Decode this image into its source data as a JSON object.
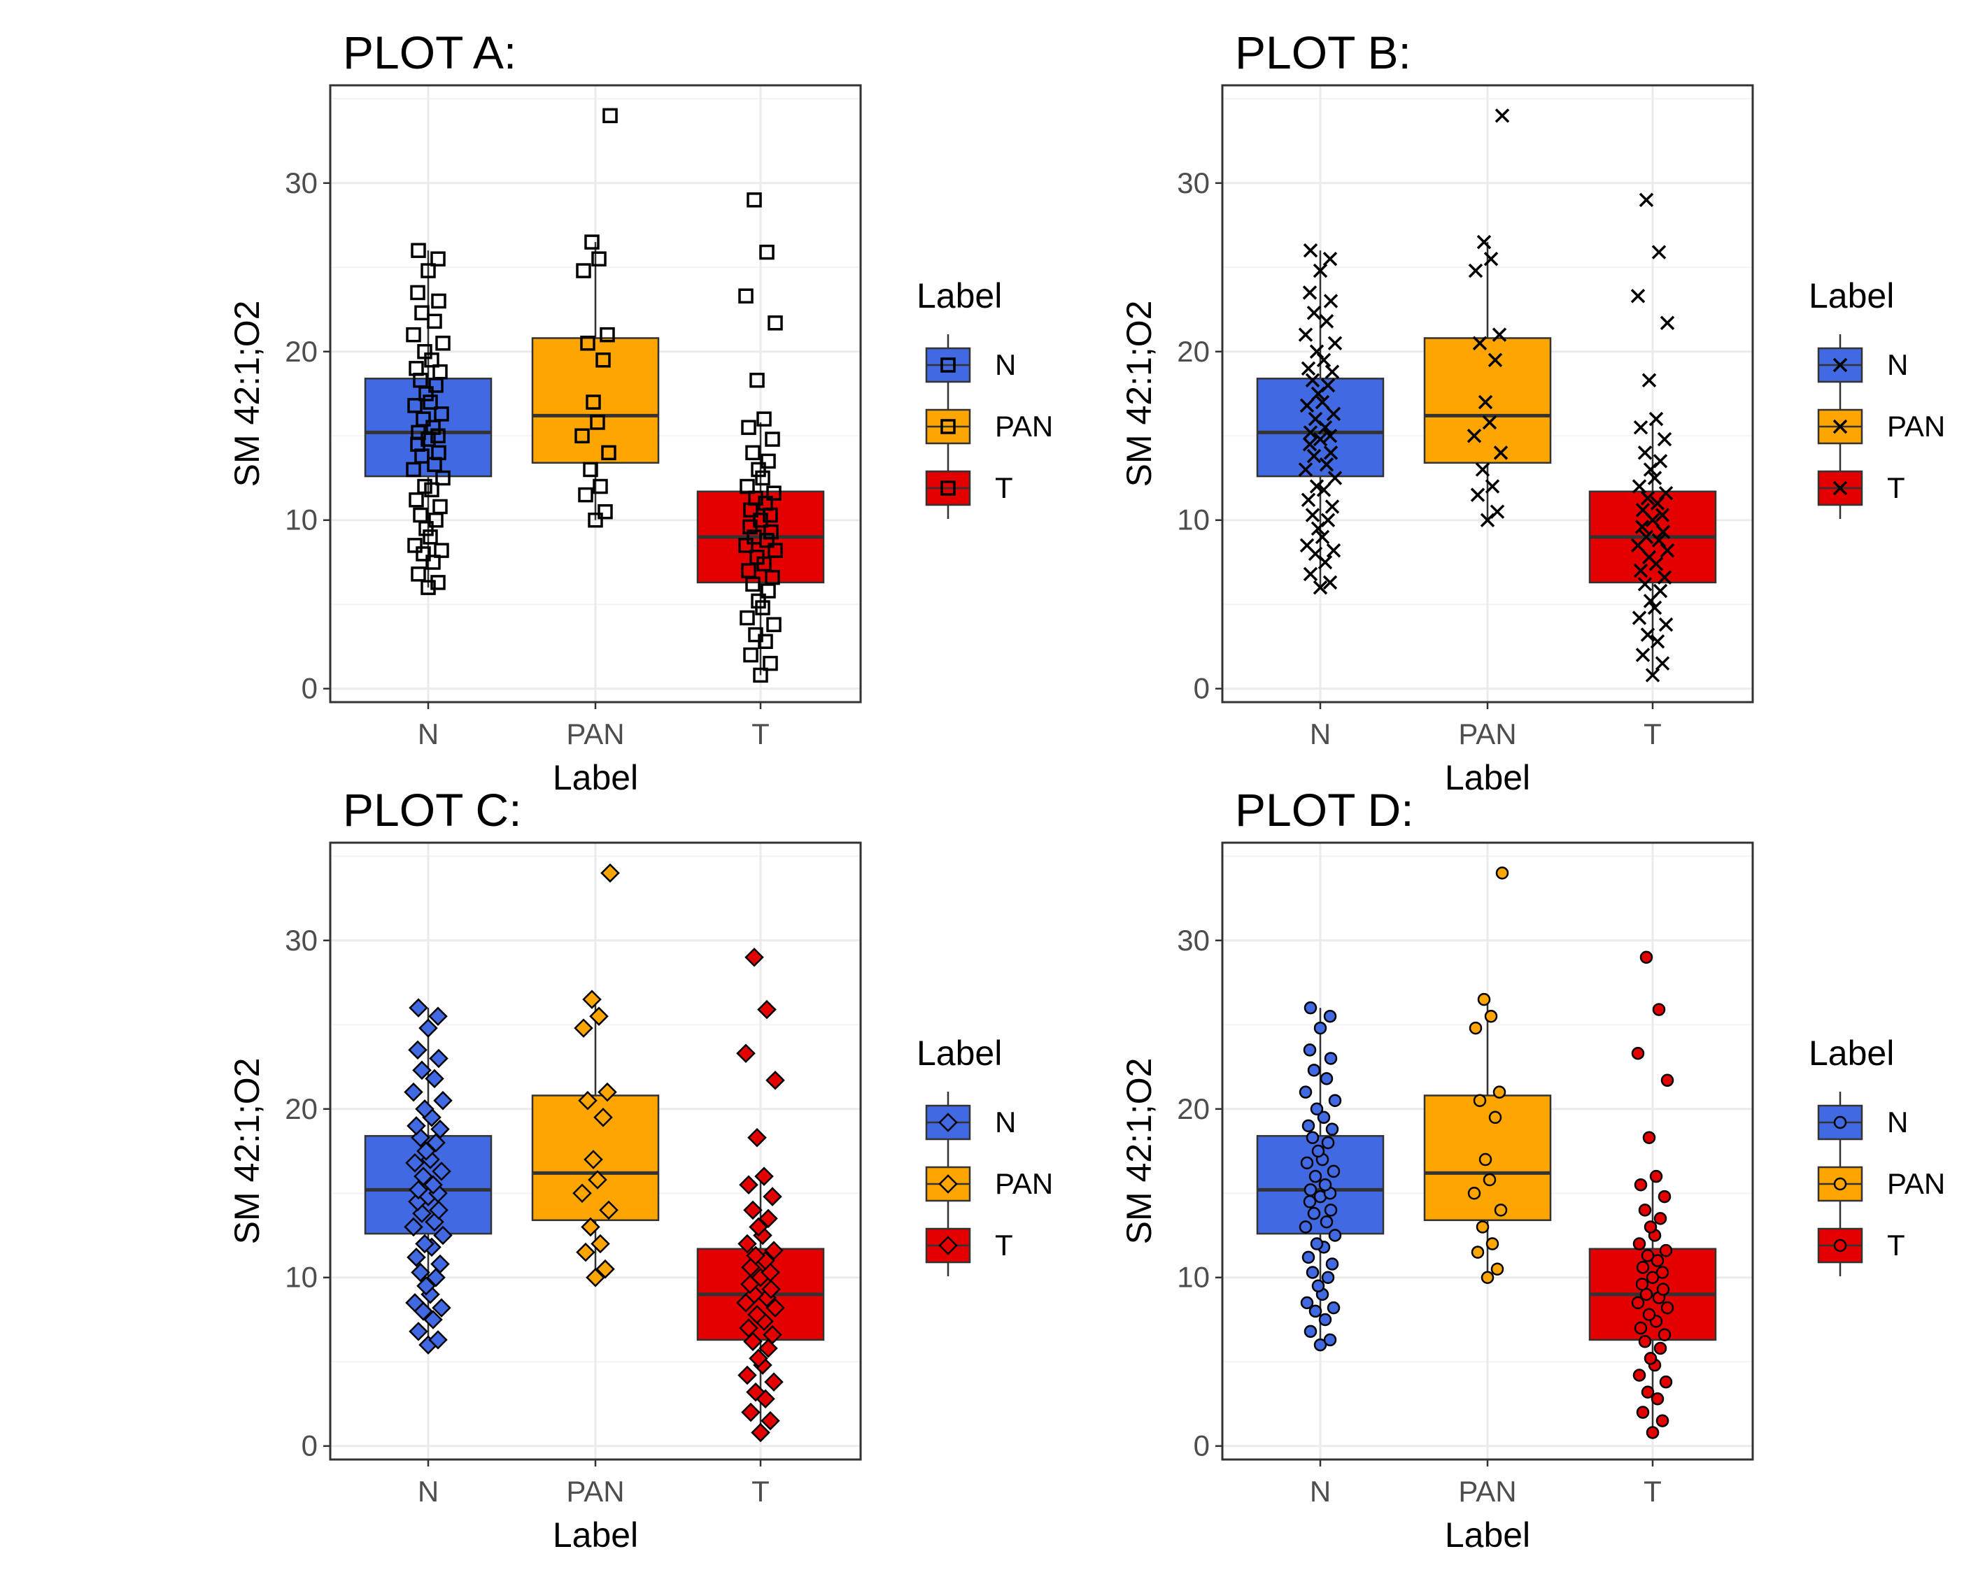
{
  "colors": {
    "N": "#4169e1",
    "PAN": "#ffa500",
    "T": "#e50000"
  },
  "chart_data": [
    {
      "type": "box",
      "title": "PLOT A:",
      "xlabel": "Label",
      "ylabel": "SM 42:1;O2",
      "categories": [
        "N",
        "PAN",
        "T"
      ],
      "ylim": [
        -0.8,
        35.8
      ],
      "yticks": [
        "0",
        "10",
        "20",
        "30"
      ],
      "point_style": "open-square",
      "legend": {
        "title": "Label",
        "entries": [
          "N",
          "PAN",
          "T"
        ],
        "position": "right"
      },
      "boxes": [
        {
          "name": "N",
          "q1": 12.6,
          "median": 15.2,
          "q3": 18.4,
          "whisker_low": 6.0,
          "whisker_high": 26.0
        },
        {
          "name": "PAN",
          "q1": 13.4,
          "median": 16.2,
          "q3": 20.8,
          "whisker_low": 10.0,
          "whisker_high": 26.5
        },
        {
          "name": "T",
          "q1": 6.3,
          "median": 9.0,
          "q3": 11.7,
          "whisker_low": 0.8,
          "whisker_high": 15.8
        }
      ],
      "points": [
        {
          "name": "N",
          "y": [
            6.0,
            6.3,
            6.8,
            7.5,
            8.0,
            8.2,
            8.5,
            9.0,
            9.5,
            10.0,
            10.3,
            10.8,
            11.2,
            11.8,
            12.0,
            12.5,
            13.0,
            13.3,
            13.8,
            14.0,
            14.5,
            14.8,
            15.0,
            15.2,
            15.5,
            16.0,
            16.3,
            16.8,
            17.0,
            17.5,
            18.0,
            18.3,
            18.8,
            19.0,
            19.5,
            20.0,
            20.5,
            21.0,
            21.8,
            22.3,
            23.0,
            23.5,
            24.8,
            25.5,
            26.0
          ]
        },
        {
          "name": "PAN",
          "y": [
            10.0,
            10.5,
            11.5,
            12.0,
            13.0,
            14.0,
            15.0,
            15.8,
            17.0,
            19.5,
            20.5,
            21.0,
            24.8,
            25.5,
            26.5,
            34.0
          ]
        },
        {
          "name": "T",
          "y": [
            0.8,
            1.5,
            2.0,
            2.8,
            3.2,
            3.8,
            4.2,
            4.8,
            5.2,
            5.8,
            6.2,
            6.6,
            7.0,
            7.4,
            7.8,
            8.2,
            8.5,
            8.8,
            9.0,
            9.3,
            9.6,
            10.0,
            10.3,
            10.6,
            11.0,
            11.3,
            11.6,
            12.0,
            12.5,
            13.0,
            13.5,
            14.0,
            14.8,
            15.5,
            16.0,
            18.3,
            21.7,
            23.3,
            25.9,
            29.0
          ]
        }
      ]
    },
    {
      "type": "box",
      "title": "PLOT B:",
      "xlabel": "Label",
      "ylabel": "SM 42:1;O2",
      "categories": [
        "N",
        "PAN",
        "T"
      ],
      "ylim": [
        -0.8,
        35.8
      ],
      "yticks": [
        "0",
        "10",
        "20",
        "30"
      ],
      "point_style": "cross",
      "legend": {
        "title": "Label",
        "entries": [
          "N",
          "PAN",
          "T"
        ],
        "position": "right"
      },
      "boxes": [
        {
          "name": "N",
          "q1": 12.6,
          "median": 15.2,
          "q3": 18.4,
          "whisker_low": 6.0,
          "whisker_high": 26.0
        },
        {
          "name": "PAN",
          "q1": 13.4,
          "median": 16.2,
          "q3": 20.8,
          "whisker_low": 10.0,
          "whisker_high": 26.5
        },
        {
          "name": "T",
          "q1": 6.3,
          "median": 9.0,
          "q3": 11.7,
          "whisker_low": 0.8,
          "whisker_high": 15.8
        }
      ],
      "points": [
        {
          "name": "N",
          "y": [
            6.0,
            6.3,
            6.8,
            7.5,
            8.0,
            8.2,
            8.5,
            9.0,
            9.5,
            10.0,
            10.3,
            10.8,
            11.2,
            11.8,
            12.0,
            12.5,
            13.0,
            13.3,
            13.8,
            14.0,
            14.5,
            14.8,
            15.0,
            15.2,
            15.5,
            16.0,
            16.3,
            16.8,
            17.0,
            17.5,
            18.0,
            18.3,
            18.8,
            19.0,
            19.5,
            20.0,
            20.5,
            21.0,
            21.8,
            22.3,
            23.0,
            23.5,
            24.8,
            25.5,
            26.0
          ]
        },
        {
          "name": "PAN",
          "y": [
            10.0,
            10.5,
            11.5,
            12.0,
            13.0,
            14.0,
            15.0,
            15.8,
            17.0,
            19.5,
            20.5,
            21.0,
            24.8,
            25.5,
            26.5,
            34.0
          ]
        },
        {
          "name": "T",
          "y": [
            0.8,
            1.5,
            2.0,
            2.8,
            3.2,
            3.8,
            4.2,
            4.8,
            5.2,
            5.8,
            6.2,
            6.6,
            7.0,
            7.4,
            7.8,
            8.2,
            8.5,
            8.8,
            9.0,
            9.3,
            9.6,
            10.0,
            10.3,
            10.6,
            11.0,
            11.3,
            11.6,
            12.0,
            12.5,
            13.0,
            13.5,
            14.0,
            14.8,
            15.5,
            16.0,
            18.3,
            21.7,
            23.3,
            25.9,
            29.0
          ]
        }
      ]
    },
    {
      "type": "box",
      "title": "PLOT C:",
      "xlabel": "Label",
      "ylabel": "SM 42:1;O2",
      "categories": [
        "N",
        "PAN",
        "T"
      ],
      "ylim": [
        -0.8,
        35.8
      ],
      "yticks": [
        "0",
        "10",
        "20",
        "30"
      ],
      "point_style": "filled-diamond",
      "legend": {
        "title": "Label",
        "entries": [
          "N",
          "PAN",
          "T"
        ],
        "position": "right"
      },
      "boxes": [
        {
          "name": "N",
          "q1": 12.6,
          "median": 15.2,
          "q3": 18.4,
          "whisker_low": 6.0,
          "whisker_high": 26.0
        },
        {
          "name": "PAN",
          "q1": 13.4,
          "median": 16.2,
          "q3": 20.8,
          "whisker_low": 10.0,
          "whisker_high": 26.5
        },
        {
          "name": "T",
          "q1": 6.3,
          "median": 9.0,
          "q3": 11.7,
          "whisker_low": 0.8,
          "whisker_high": 15.8
        }
      ],
      "points": [
        {
          "name": "N",
          "y": [
            6.0,
            6.3,
            6.8,
            7.5,
            8.0,
            8.2,
            8.5,
            9.0,
            9.5,
            10.0,
            10.3,
            10.8,
            11.2,
            11.8,
            12.0,
            12.5,
            13.0,
            13.3,
            13.8,
            14.0,
            14.5,
            14.8,
            15.0,
            15.2,
            15.5,
            16.0,
            16.3,
            16.8,
            17.0,
            17.5,
            18.0,
            18.3,
            18.8,
            19.0,
            19.5,
            20.0,
            20.5,
            21.0,
            21.8,
            22.3,
            23.0,
            23.5,
            24.8,
            25.5,
            26.0
          ]
        },
        {
          "name": "PAN",
          "y": [
            10.0,
            10.5,
            11.5,
            12.0,
            13.0,
            14.0,
            15.0,
            15.8,
            17.0,
            19.5,
            20.5,
            21.0,
            24.8,
            25.5,
            26.5,
            34.0
          ]
        },
        {
          "name": "T",
          "y": [
            0.8,
            1.5,
            2.0,
            2.8,
            3.2,
            3.8,
            4.2,
            4.8,
            5.2,
            5.8,
            6.2,
            6.6,
            7.0,
            7.4,
            7.8,
            8.2,
            8.5,
            8.8,
            9.0,
            9.3,
            9.6,
            10.0,
            10.3,
            10.6,
            11.0,
            11.3,
            11.6,
            12.0,
            12.5,
            13.0,
            13.5,
            14.0,
            14.8,
            15.5,
            16.0,
            18.3,
            21.7,
            23.3,
            25.9,
            29.0
          ]
        }
      ]
    },
    {
      "type": "box",
      "title": "PLOT D:",
      "xlabel": "Label",
      "ylabel": "SM 42:1;O2",
      "categories": [
        "N",
        "PAN",
        "T"
      ],
      "ylim": [
        -0.8,
        35.8
      ],
      "yticks": [
        "0",
        "10",
        "20",
        "30"
      ],
      "point_style": "filled-circle",
      "legend": {
        "title": "Label",
        "entries": [
          "N",
          "PAN",
          "T"
        ],
        "position": "right"
      },
      "boxes": [
        {
          "name": "N",
          "q1": 12.6,
          "median": 15.2,
          "q3": 18.4,
          "whisker_low": 6.0,
          "whisker_high": 26.0
        },
        {
          "name": "PAN",
          "q1": 13.4,
          "median": 16.2,
          "q3": 20.8,
          "whisker_low": 10.0,
          "whisker_high": 26.5
        },
        {
          "name": "T",
          "q1": 6.3,
          "median": 9.0,
          "q3": 11.7,
          "whisker_low": 0.8,
          "whisker_high": 15.8
        }
      ],
      "points": [
        {
          "name": "N",
          "y": [
            6.0,
            6.3,
            6.8,
            7.5,
            8.0,
            8.2,
            8.5,
            9.0,
            9.5,
            10.0,
            10.3,
            10.8,
            11.2,
            11.8,
            12.0,
            12.5,
            13.0,
            13.3,
            13.8,
            14.0,
            14.5,
            14.8,
            15.0,
            15.2,
            15.5,
            16.0,
            16.3,
            16.8,
            17.0,
            17.5,
            18.0,
            18.3,
            18.8,
            19.0,
            19.5,
            20.0,
            20.5,
            21.0,
            21.8,
            22.3,
            23.0,
            23.5,
            24.8,
            25.5,
            26.0
          ]
        },
        {
          "name": "PAN",
          "y": [
            10.0,
            10.5,
            11.5,
            12.0,
            13.0,
            14.0,
            15.0,
            15.8,
            17.0,
            19.5,
            20.5,
            21.0,
            24.8,
            25.5,
            26.5,
            34.0
          ]
        },
        {
          "name": "T",
          "y": [
            0.8,
            1.5,
            2.0,
            2.8,
            3.2,
            3.8,
            4.2,
            4.8,
            5.2,
            5.8,
            6.2,
            6.6,
            7.0,
            7.4,
            7.8,
            8.2,
            8.5,
            8.8,
            9.0,
            9.3,
            9.6,
            10.0,
            10.3,
            10.6,
            11.0,
            11.3,
            11.6,
            12.0,
            12.5,
            13.0,
            13.5,
            14.0,
            14.8,
            15.5,
            16.0,
            18.3,
            21.7,
            23.3,
            25.9,
            29.0
          ]
        }
      ]
    }
  ]
}
